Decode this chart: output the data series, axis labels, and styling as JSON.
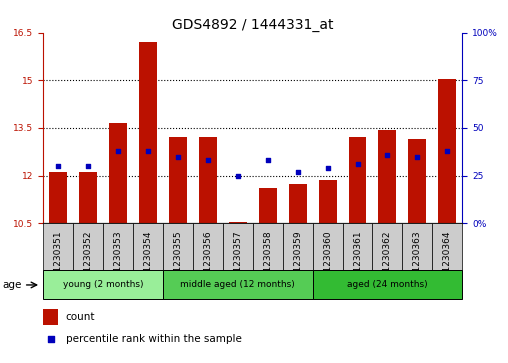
{
  "title": "GDS4892 / 1444331_at",
  "samples": [
    "GSM1230351",
    "GSM1230352",
    "GSM1230353",
    "GSM1230354",
    "GSM1230355",
    "GSM1230356",
    "GSM1230357",
    "GSM1230358",
    "GSM1230359",
    "GSM1230360",
    "GSM1230361",
    "GSM1230362",
    "GSM1230363",
    "GSM1230364"
  ],
  "count_values": [
    12.1,
    12.1,
    13.65,
    16.2,
    13.2,
    13.2,
    10.55,
    11.6,
    11.75,
    11.85,
    13.2,
    13.45,
    13.15,
    15.05
  ],
  "percentile_values": [
    30,
    30,
    38,
    38,
    35,
    33,
    25,
    33,
    27,
    29,
    31,
    36,
    35,
    38
  ],
  "ylim_left": [
    10.5,
    16.5
  ],
  "ylim_right": [
    0,
    100
  ],
  "yticks_left": [
    10.5,
    12.0,
    13.5,
    15.0,
    16.5
  ],
  "yticks_right": [
    0,
    25,
    50,
    75,
    100
  ],
  "ytick_labels_left": [
    "10.5",
    "12",
    "13.5",
    "15",
    "16.5"
  ],
  "ytick_labels_right": [
    "0%",
    "25",
    "50",
    "75",
    "100%"
  ],
  "groups": [
    {
      "label": "young (2 months)",
      "start": 0,
      "end": 4,
      "color": "#99ee99"
    },
    {
      "label": "middle aged (12 months)",
      "start": 4,
      "end": 9,
      "color": "#55cc55"
    },
    {
      "label": "aged (24 months)",
      "start": 9,
      "end": 14,
      "color": "#33bb33"
    }
  ],
  "bar_color": "#bb1100",
  "percentile_color": "#0000bb",
  "bar_bottom": 10.5,
  "age_label": "age",
  "legend_count": "count",
  "legend_percentile": "percentile rank within the sample",
  "background_color": "#ffffff",
  "title_fontsize": 10,
  "tick_fontsize": 6.5,
  "label_fontsize": 7.5,
  "sample_box_color": "#cccccc",
  "grid_yticks": [
    12.0,
    13.5,
    15.0
  ]
}
